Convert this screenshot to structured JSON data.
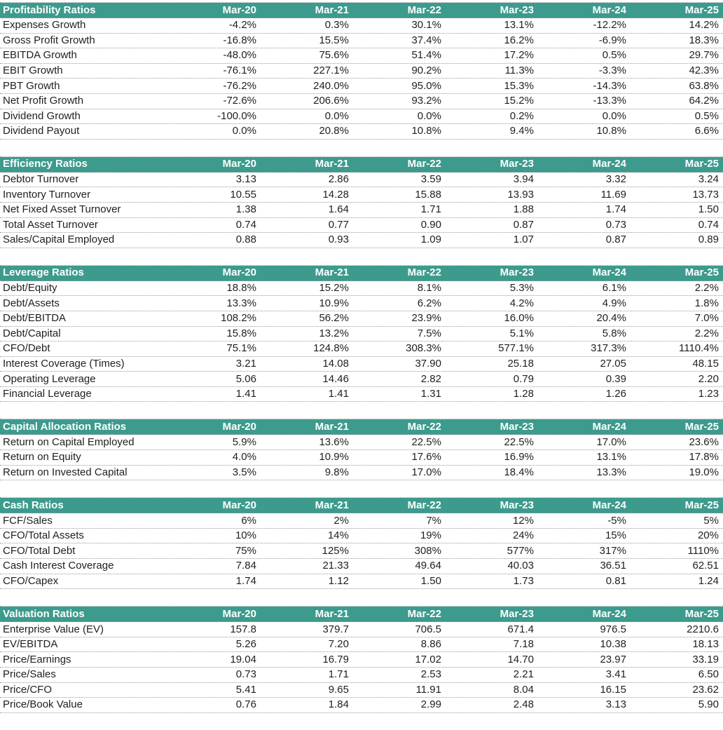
{
  "colors": {
    "header_background": "#3c9b8d",
    "header_text": "#ffffff",
    "body_text": "#1f1f1f",
    "divider_dotted": "#9a9a9a"
  },
  "chart_data": [
    {
      "type": "table",
      "title": "Profitability Ratios",
      "columns": [
        "Mar-20",
        "Mar-21",
        "Mar-22",
        "Mar-23",
        "Mar-24",
        "Mar-25"
      ],
      "rows": [
        {
          "label": "Expenses Growth",
          "values": [
            "-4.2%",
            "0.3%",
            "30.1%",
            "13.1%",
            "-12.2%",
            "14.2%"
          ]
        },
        {
          "label": "Gross Profit Growth",
          "values": [
            "-16.8%",
            "15.5%",
            "37.4%",
            "16.2%",
            "-6.9%",
            "18.3%"
          ]
        },
        {
          "label": "EBITDA Growth",
          "values": [
            "-48.0%",
            "75.6%",
            "51.4%",
            "17.2%",
            "0.5%",
            "29.7%"
          ]
        },
        {
          "label": "EBIT Growth",
          "values": [
            "-76.1%",
            "227.1%",
            "90.2%",
            "11.3%",
            "-3.3%",
            "42.3%"
          ]
        },
        {
          "label": "PBT Growth",
          "values": [
            "-76.2%",
            "240.0%",
            "95.0%",
            "15.3%",
            "-14.3%",
            "63.8%"
          ]
        },
        {
          "label": "Net Profit Growth",
          "values": [
            "-72.6%",
            "206.6%",
            "93.2%",
            "15.2%",
            "-13.3%",
            "64.2%"
          ]
        },
        {
          "label": "Dividend Growth",
          "values": [
            "-100.0%",
            "0.0%",
            "0.0%",
            "0.2%",
            "0.0%",
            "0.5%"
          ]
        },
        {
          "label": "Dividend Payout",
          "values": [
            "0.0%",
            "20.8%",
            "10.8%",
            "9.4%",
            "10.8%",
            "6.6%"
          ]
        }
      ]
    },
    {
      "type": "table",
      "title": "Efficiency Ratios",
      "columns": [
        "Mar-20",
        "Mar-21",
        "Mar-22",
        "Mar-23",
        "Mar-24",
        "Mar-25"
      ],
      "rows": [
        {
          "label": "Debtor Turnover",
          "values": [
            "3.13",
            "2.86",
            "3.59",
            "3.94",
            "3.32",
            "3.24"
          ]
        },
        {
          "label": "Inventory Turnover",
          "values": [
            "10.55",
            "14.28",
            "15.88",
            "13.93",
            "11.69",
            "13.73"
          ]
        },
        {
          "label": "Net Fixed Asset Turnover",
          "values": [
            "1.38",
            "1.64",
            "1.71",
            "1.88",
            "1.74",
            "1.50"
          ]
        },
        {
          "label": "Total Asset Turnover",
          "values": [
            "0.74",
            "0.77",
            "0.90",
            "0.87",
            "0.73",
            "0.74"
          ]
        },
        {
          "label": "Sales/Capital Employed",
          "values": [
            "0.88",
            "0.93",
            "1.09",
            "1.07",
            "0.87",
            "0.89"
          ]
        }
      ]
    },
    {
      "type": "table",
      "title": "Leverage Ratios",
      "columns": [
        "Mar-20",
        "Mar-21",
        "Mar-22",
        "Mar-23",
        "Mar-24",
        "Mar-25"
      ],
      "rows": [
        {
          "label": "Debt/Equity",
          "values": [
            "18.8%",
            "15.2%",
            "8.1%",
            "5.3%",
            "6.1%",
            "2.2%"
          ]
        },
        {
          "label": "Debt/Assets",
          "values": [
            "13.3%",
            "10.9%",
            "6.2%",
            "4.2%",
            "4.9%",
            "1.8%"
          ]
        },
        {
          "label": "Debt/EBITDA",
          "values": [
            "108.2%",
            "56.2%",
            "23.9%",
            "16.0%",
            "20.4%",
            "7.0%"
          ]
        },
        {
          "label": "Debt/Capital",
          "values": [
            "15.8%",
            "13.2%",
            "7.5%",
            "5.1%",
            "5.8%",
            "2.2%"
          ]
        },
        {
          "label": "CFO/Debt",
          "values": [
            "75.1%",
            "124.8%",
            "308.3%",
            "577.1%",
            "317.3%",
            "1110.4%"
          ]
        },
        {
          "label": "Interest Coverage (Times)",
          "values": [
            "3.21",
            "14.08",
            "37.90",
            "25.18",
            "27.05",
            "48.15"
          ]
        },
        {
          "label": "Operating Leverage",
          "values": [
            "5.06",
            "14.46",
            "2.82",
            "0.79",
            "0.39",
            "2.20"
          ]
        },
        {
          "label": "Financial Leverage",
          "values": [
            "1.41",
            "1.41",
            "1.31",
            "1.28",
            "1.26",
            "1.23"
          ]
        }
      ]
    },
    {
      "type": "table",
      "title": "Capital Allocation Ratios",
      "columns": [
        "Mar-20",
        "Mar-21",
        "Mar-22",
        "Mar-23",
        "Mar-24",
        "Mar-25"
      ],
      "rows": [
        {
          "label": "Return on Capital Employed",
          "values": [
            "5.9%",
            "13.6%",
            "22.5%",
            "22.5%",
            "17.0%",
            "23.6%"
          ]
        },
        {
          "label": "Return on Equity",
          "values": [
            "4.0%",
            "10.9%",
            "17.6%",
            "16.9%",
            "13.1%",
            "17.8%"
          ]
        },
        {
          "label": "Return on Invested Capital",
          "values": [
            "3.5%",
            "9.8%",
            "17.0%",
            "18.4%",
            "13.3%",
            "19.0%"
          ]
        }
      ]
    },
    {
      "type": "table",
      "title": "Cash Ratios",
      "columns": [
        "Mar-20",
        "Mar-21",
        "Mar-22",
        "Mar-23",
        "Mar-24",
        "Mar-25"
      ],
      "rows": [
        {
          "label": "FCF/Sales",
          "values": [
            "6%",
            "2%",
            "7%",
            "12%",
            "-5%",
            "5%"
          ]
        },
        {
          "label": "CFO/Total Assets",
          "values": [
            "10%",
            "14%",
            "19%",
            "24%",
            "15%",
            "20%"
          ]
        },
        {
          "label": "CFO/Total Debt",
          "values": [
            "75%",
            "125%",
            "308%",
            "577%",
            "317%",
            "1110%"
          ]
        },
        {
          "label": "Cash Interest Coverage",
          "values": [
            "7.84",
            "21.33",
            "49.64",
            "40.03",
            "36.51",
            "62.51"
          ]
        },
        {
          "label": "CFO/Capex",
          "values": [
            "1.74",
            "1.12",
            "1.50",
            "1.73",
            "0.81",
            "1.24"
          ]
        }
      ]
    },
    {
      "type": "table",
      "title": "Valuation Ratios",
      "columns": [
        "Mar-20",
        "Mar-21",
        "Mar-22",
        "Mar-23",
        "Mar-24",
        "Mar-25"
      ],
      "rows": [
        {
          "label": "Enterprise Value (EV)",
          "values": [
            "157.8",
            "379.7",
            "706.5",
            "671.4",
            "976.5",
            "2210.6"
          ]
        },
        {
          "label": "EV/EBITDA",
          "values": [
            "5.26",
            "7.20",
            "8.86",
            "7.18",
            "10.38",
            "18.13"
          ]
        },
        {
          "label": "Price/Earnings",
          "values": [
            "19.04",
            "16.79",
            "17.02",
            "14.70",
            "23.97",
            "33.19"
          ]
        },
        {
          "label": "Price/Sales",
          "values": [
            "0.73",
            "1.71",
            "2.53",
            "2.21",
            "3.41",
            "6.50"
          ]
        },
        {
          "label": "Price/CFO",
          "values": [
            "5.41",
            "9.65",
            "11.91",
            "8.04",
            "16.15",
            "23.62"
          ]
        },
        {
          "label": "Price/Book Value",
          "values": [
            "0.76",
            "1.84",
            "2.99",
            "2.48",
            "3.13",
            "5.90"
          ]
        }
      ]
    }
  ]
}
